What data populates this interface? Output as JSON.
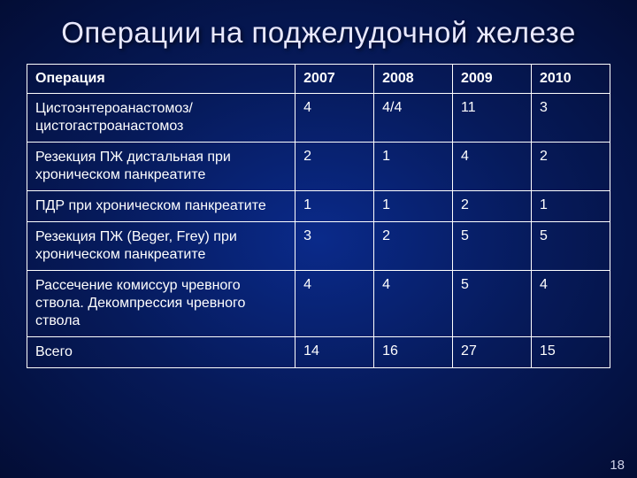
{
  "title": "Операции на поджелудочной железе",
  "page_number": "18",
  "colors": {
    "bg_center": "#0a2a8a",
    "bg_mid": "#061a5a",
    "bg_edge": "#030d35",
    "border": "#ffffff",
    "text": "#ffffff",
    "title_text": "#e8e8ff"
  },
  "typography": {
    "title_fontsize": 33,
    "cell_fontsize": 16,
    "font_family": "Arial"
  },
  "table": {
    "columns": [
      "Операция",
      "2007",
      "2008",
      "2009",
      "2010"
    ],
    "col_widths_pct": [
      46,
      13.5,
      13.5,
      13.5,
      13.5
    ],
    "rows": [
      [
        "Цистоэнтероанастомоз/ цистогастроанастомоз",
        "4",
        "4/4",
        "11",
        "3"
      ],
      [
        "Резекция ПЖ дистальная при хроническом панкреатите",
        "2",
        "1",
        "4",
        "2"
      ],
      [
        "ПДР при хроническом панкреатите",
        "1",
        "1",
        "2",
        "1"
      ],
      [
        "Резекция ПЖ (Beger, Frey) при хроническом панкреатите",
        "3",
        "2",
        "5",
        "5"
      ],
      [
        "Рассечение комиссур чревного ствола. Декомпрессия чревного ствола",
        "4",
        "4",
        "5",
        "4"
      ],
      [
        "Всего",
        "14",
        "16",
        "27",
        "15"
      ]
    ]
  }
}
